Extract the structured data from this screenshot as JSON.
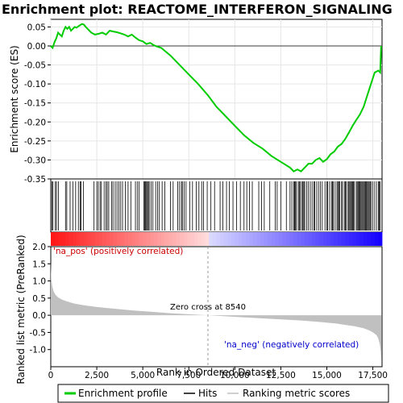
{
  "chart_data": {
    "type": "line",
    "title": "Enrichment plot: REACTOME_INTERFERON_SIGNALING",
    "xlabel": "Rank in Ordered Dataset",
    "top_panel": {
      "ylabel": "Enrichment score (ES)",
      "ylim": [
        -0.35,
        0.07
      ],
      "yticks": [
        "0.05",
        "0.00",
        "-0.05",
        "-0.10",
        "-0.15",
        "-0.20",
        "-0.25",
        "-0.30",
        "-0.35"
      ],
      "ytick_values": [
        0.05,
        0.0,
        -0.05,
        -0.1,
        -0.15,
        -0.2,
        -0.25,
        -0.3,
        -0.35
      ],
      "grid": true,
      "line_color": "#00cc00",
      "series": [
        {
          "name": "Enrichment profile",
          "x": [
            0,
            100,
            200,
            300,
            400,
            500,
            600,
            700,
            800,
            900,
            1000,
            1100,
            1200,
            1300,
            1400,
            1500,
            1600,
            1700,
            1800,
            1900,
            2000,
            2200,
            2400,
            2600,
            2800,
            3000,
            3200,
            3400,
            3600,
            3800,
            4000,
            4200,
            4400,
            4600,
            4800,
            5000,
            5200,
            5400,
            5600,
            5800,
            6000,
            6500,
            7000,
            7500,
            8000,
            8540,
            9000,
            9500,
            10000,
            10500,
            11000,
            11500,
            12000,
            12500,
            13000,
            13200,
            13400,
            13600,
            13800,
            14000,
            14200,
            14400,
            14600,
            14800,
            15000,
            15200,
            15400,
            15600,
            15800,
            16000,
            16200,
            16400,
            16600,
            16800,
            17000,
            17200,
            17400,
            17600,
            17800,
            17900,
            17950
          ],
          "y": [
            0.0,
            -0.005,
            0.01,
            0.02,
            0.035,
            0.03,
            0.025,
            0.04,
            0.05,
            0.045,
            0.05,
            0.04,
            0.045,
            0.05,
            0.048,
            0.052,
            0.055,
            0.058,
            0.056,
            0.05,
            0.045,
            0.035,
            0.03,
            0.032,
            0.035,
            0.03,
            0.04,
            0.038,
            0.036,
            0.033,
            0.03,
            0.025,
            0.03,
            0.022,
            0.015,
            0.012,
            0.005,
            0.008,
            0.002,
            -0.002,
            -0.005,
            -0.025,
            -0.05,
            -0.075,
            -0.1,
            -0.13,
            -0.16,
            -0.185,
            -0.21,
            -0.235,
            -0.255,
            -0.27,
            -0.29,
            -0.305,
            -0.32,
            -0.33,
            -0.325,
            -0.33,
            -0.32,
            -0.31,
            -0.31,
            -0.3,
            -0.295,
            -0.305,
            -0.298,
            -0.285,
            -0.278,
            -0.265,
            -0.258,
            -0.245,
            -0.228,
            -0.21,
            -0.195,
            -0.18,
            -0.16,
            -0.13,
            -0.1,
            -0.07,
            -0.065,
            -0.07,
            0.0
          ]
        }
      ]
    },
    "hits_panel": {
      "series_name": "Hits",
      "hit_positions": [
        60,
        120,
        250,
        310,
        420,
        800,
        870,
        1050,
        1200,
        1350,
        1500,
        1600,
        1650,
        1780,
        2350,
        2500,
        2580,
        2680,
        2750,
        2900,
        3000,
        3070,
        3150,
        3300,
        3380,
        3500,
        3600,
        3700,
        3800,
        3900,
        4050,
        4200,
        4350,
        4600,
        4700,
        4800,
        5050,
        5100,
        5150,
        5200,
        5250,
        5300,
        5350,
        5450,
        5550,
        5700,
        5800,
        5900,
        6050,
        6200,
        6500,
        6650,
        6900,
        7000,
        7100,
        7150,
        7250,
        7350,
        7550,
        7700,
        7900,
        8050,
        8200,
        8300,
        8500,
        8700,
        8900,
        9200,
        9350,
        9550,
        9700,
        9900,
        10100,
        10300,
        10500,
        10650,
        10800,
        10950,
        11300,
        11450,
        11600,
        11900,
        12200,
        12300,
        12500,
        12800,
        13000,
        13100,
        13200,
        13250,
        13300,
        13350,
        13450,
        13500,
        13550,
        13650,
        13700,
        13750,
        13800,
        13900,
        14000,
        14100,
        14200,
        14300,
        14350,
        14450,
        14550,
        14650,
        14750,
        14900,
        15000,
        15050,
        15150,
        15250,
        15300,
        15350,
        15450,
        15550,
        15600,
        15650,
        15700,
        15800,
        15850,
        15950,
        16000,
        16050,
        16150,
        16200,
        16250,
        16300,
        16350,
        16400,
        16450,
        16500,
        16600,
        16650,
        16700,
        16750,
        16800,
        16850,
        16900,
        16950,
        17000,
        17050,
        17100,
        17150,
        17200,
        17250,
        17300,
        17350,
        17400,
        17500,
        17600,
        17700,
        17800,
        17850,
        17900
      ]
    },
    "bottom_panel": {
      "ylabel": "Ranked list metric (PreRanked)",
      "ylim": [
        -1.5,
        2.0
      ],
      "yticks": [
        "2.0",
        "1.5",
        "1.0",
        "0.5",
        "0.0",
        "-0.5",
        "-1.0"
      ],
      "ytick_values": [
        2.0,
        1.5,
        1.0,
        0.5,
        0.0,
        -0.5,
        -1.0
      ],
      "series_name": "Ranking metric scores",
      "fill_color": "#c0c0c0",
      "x": [
        0,
        30,
        80,
        150,
        250,
        400,
        600,
        900,
        1300,
        1800,
        2500,
        3500,
        4500,
        5500,
        6500,
        7500,
        8540,
        9500,
        10500,
        11500,
        12500,
        13500,
        14500,
        15500,
        16000,
        16500,
        17000,
        17300,
        17500,
        17700,
        17800,
        17880,
        17930,
        17960
      ],
      "y": [
        1.55,
        1.05,
        0.85,
        0.7,
        0.6,
        0.52,
        0.46,
        0.4,
        0.34,
        0.29,
        0.24,
        0.19,
        0.14,
        0.1,
        0.06,
        0.03,
        0.0,
        -0.03,
        -0.06,
        -0.09,
        -0.12,
        -0.15,
        -0.19,
        -0.24,
        -0.28,
        -0.32,
        -0.38,
        -0.44,
        -0.5,
        -0.58,
        -0.68,
        -0.85,
        -1.05,
        -1.35
      ],
      "zero_cross_label": "Zero cross at 8540",
      "zero_cross": 8540,
      "pos_label": "'na_pos' (positively correlated)",
      "neg_label": "'na_neg' (negatively correlated)"
    },
    "xlim": [
      0,
      18000
    ],
    "xticks": [
      "0",
      "2,500",
      "5,000",
      "7,500",
      "10,000",
      "12,500",
      "15,000",
      "17,500"
    ],
    "xtick_values": [
      0,
      2500,
      5000,
      7500,
      10000,
      12500,
      15000,
      17500
    ],
    "legend": {
      "placement": "bottom",
      "entries": [
        "Enrichment profile",
        "Hits",
        "Ranking metric scores"
      ]
    }
  }
}
